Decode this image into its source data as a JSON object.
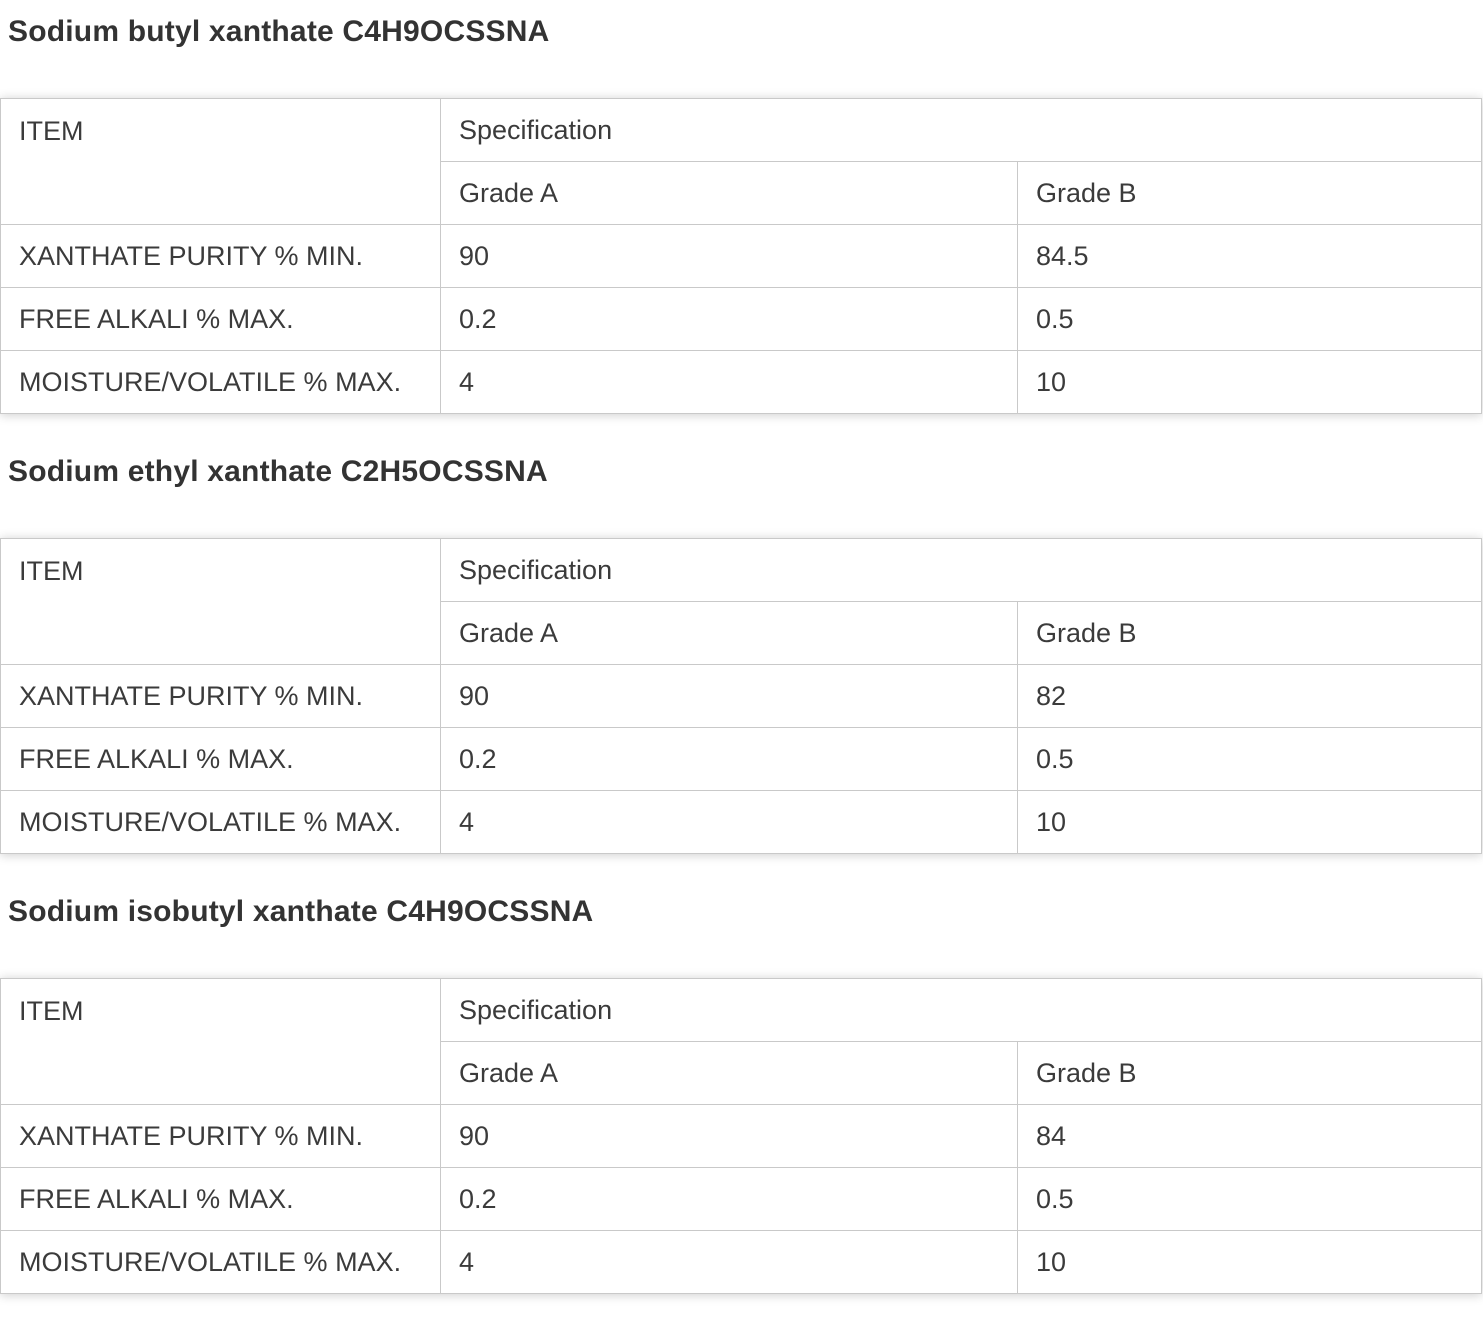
{
  "theme": {
    "background": "#ffffff",
    "text_color": "#3b3b3b",
    "title_color": "#333333",
    "border_color": "#c9c9c9"
  },
  "sections": [
    {
      "title": "Sodium butyl xanthate C4H9OCSSNA",
      "table": {
        "item_header": "ITEM",
        "spec_header": "Specification",
        "grade_a_header": "Grade A",
        "grade_b_header": "Grade B",
        "rows": [
          {
            "item": "XANTHATE PURITY % MIN.",
            "grade_a": "90",
            "grade_b": "84.5"
          },
          {
            "item": "FREE ALKALI % MAX.",
            "grade_a": "0.2",
            "grade_b": "0.5"
          },
          {
            "item": "MOISTURE/VOLATILE % MAX.",
            "grade_a": "4",
            "grade_b": "10"
          }
        ]
      }
    },
    {
      "title": "Sodium ethyl xanthate C2H5OCSSNA",
      "table": {
        "item_header": "ITEM",
        "spec_header": "Specification",
        "grade_a_header": "Grade A",
        "grade_b_header": "Grade B",
        "rows": [
          {
            "item": "XANTHATE PURITY % MIN.",
            "grade_a": "90",
            "grade_b": "82"
          },
          {
            "item": "FREE ALKALI % MAX.",
            "grade_a": "0.2",
            "grade_b": "0.5"
          },
          {
            "item": "MOISTURE/VOLATILE % MAX.",
            "grade_a": "4",
            "grade_b": "10"
          }
        ]
      }
    },
    {
      "title": "Sodium isobutyl xanthate C4H9OCSSNA",
      "table": {
        "item_header": "ITEM",
        "spec_header": "Specification",
        "grade_a_header": "Grade A",
        "grade_b_header": "Grade B",
        "rows": [
          {
            "item": "XANTHATE PURITY % MIN.",
            "grade_a": "90",
            "grade_b": "84"
          },
          {
            "item": "FREE ALKALI % MAX.",
            "grade_a": "0.2",
            "grade_b": "0.5"
          },
          {
            "item": "MOISTURE/VOLATILE % MAX.",
            "grade_a": "4",
            "grade_b": "10"
          }
        ]
      }
    }
  ]
}
